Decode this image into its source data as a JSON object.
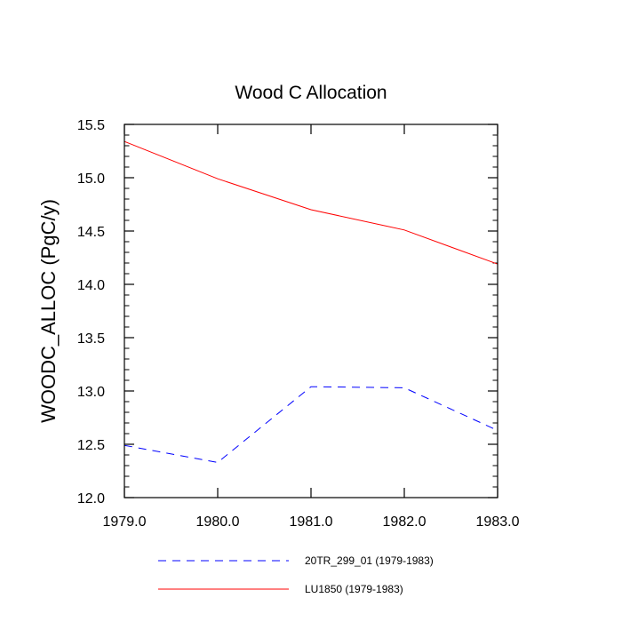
{
  "chart_data": {
    "type": "line",
    "title": "Wood C Allocation",
    "xlabel": "",
    "ylabel": "WOODC_ALLOC  (PgC/y)",
    "xlim": [
      1979,
      1983
    ],
    "ylim": [
      12.0,
      15.5
    ],
    "x_ticks": [
      1979,
      1980,
      1981,
      1982,
      1983
    ],
    "x_tick_labels": [
      "1979.0",
      "1980.0",
      "1981.0",
      "1982.0",
      "1983.0"
    ],
    "y_ticks": [
      12.0,
      12.5,
      13.0,
      13.5,
      14.0,
      14.5,
      15.0,
      15.5
    ],
    "y_tick_labels": [
      "12.0",
      "12.5",
      "13.0",
      "13.5",
      "14.0",
      "14.5",
      "15.0",
      "15.5"
    ],
    "grid": false,
    "legend_position": "bottom",
    "series": [
      {
        "name": "20TR_299_01 (1979-1983)",
        "color": "#0000ff",
        "style": "dashed",
        "x": [
          1979,
          1980,
          1981,
          1982,
          1983
        ],
        "values": [
          12.49,
          12.33,
          13.04,
          13.03,
          12.63
        ]
      },
      {
        "name": "LU1850 (1979-1983)",
        "color": "#ff0000",
        "style": "solid",
        "x": [
          1979,
          1980,
          1981,
          1982,
          1983
        ],
        "values": [
          15.34,
          14.99,
          14.7,
          14.51,
          14.19
        ]
      }
    ]
  }
}
